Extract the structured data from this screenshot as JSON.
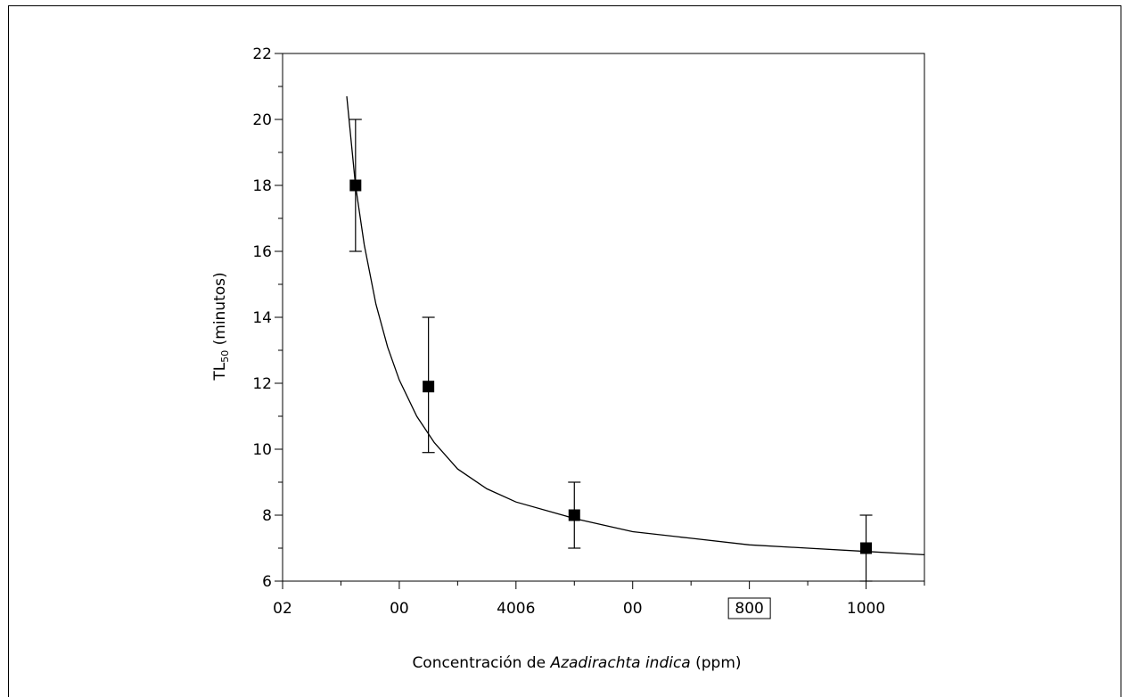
{
  "chart_data": {
    "type": "scatter",
    "title": "",
    "xlabel_prefix": "Concentración de ",
    "xlabel_italic": "Azadirachta indica",
    "xlabel_suffix": " (ppm)",
    "ylabel_main": "TL",
    "ylabel_sub": "50",
    "ylabel_suffix": " (minutos)",
    "xlim": [
      0,
      1100
    ],
    "ylim": [
      6,
      22
    ],
    "x_tick_labels": [
      {
        "x": 0,
        "label": "02"
      },
      {
        "x": 200,
        "label": "00"
      },
      {
        "x": 400,
        "label": "4006"
      },
      {
        "x": 600,
        "label": "00"
      },
      {
        "x": 800,
        "label": "800",
        "boxed": true
      },
      {
        "x": 1000,
        "label": "1000"
      }
    ],
    "y_ticks": [
      6,
      8,
      10,
      12,
      14,
      16,
      18,
      20,
      22
    ],
    "series": [
      {
        "points": [
          {
            "x": 125,
            "y": 18.0,
            "err_low": 16.0,
            "err_high": 20.0
          },
          {
            "x": 250,
            "y": 11.9,
            "err_low": 9.9,
            "err_high": 14.0
          },
          {
            "x": 500,
            "y": 8.0,
            "err_low": 7.0,
            "err_high": 9.0
          },
          {
            "x": 1000,
            "y": 7.0,
            "err_low": 6.0,
            "err_high": 8.0
          }
        ]
      }
    ],
    "fit_curve": {
      "x": [
        110,
        125,
        140,
        160,
        180,
        200,
        230,
        260,
        300,
        350,
        400,
        500,
        600,
        700,
        800,
        900,
        1000,
        1100
      ],
      "y": [
        20.7,
        18.0,
        16.2,
        14.4,
        13.1,
        12.1,
        11.0,
        10.2,
        9.4,
        8.8,
        8.4,
        7.9,
        7.5,
        7.3,
        7.1,
        7.0,
        6.9,
        6.8
      ]
    }
  }
}
